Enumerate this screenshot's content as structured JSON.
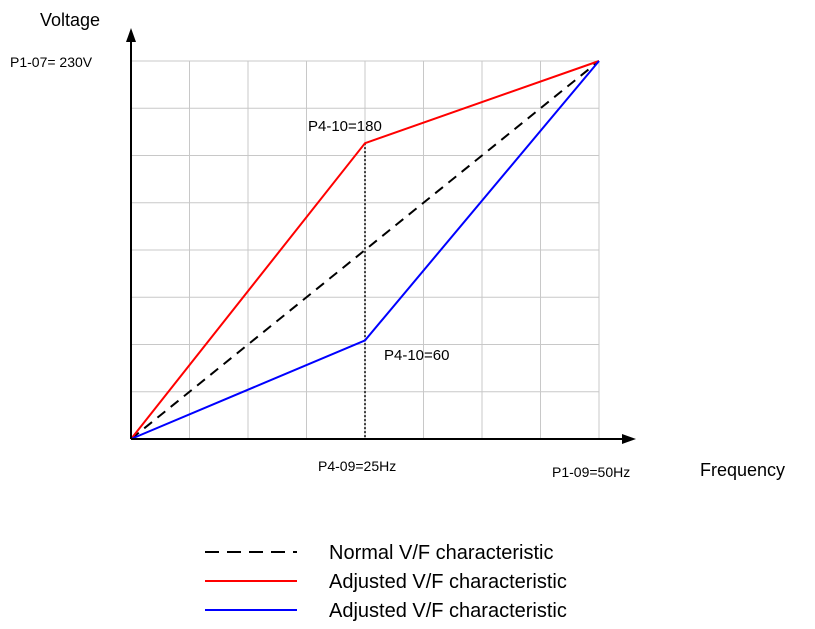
{
  "chart_data": {
    "type": "line",
    "xlabel": "Frequency",
    "ylabel": "Voltage",
    "xlim": [
      0,
      50
    ],
    "ylim": [
      0,
      230
    ],
    "grid": true,
    "legend_position": "bottom-center",
    "y_max_label": "P1-07= 230V",
    "x_mid_label": "P4-09=25Hz",
    "x_max_label": "P1-09=50Hz",
    "annotations": {
      "upper_point": "P4-10=180",
      "lower_point": "P4-10=60"
    },
    "series": [
      {
        "name": "Normal V/F characteristic",
        "color": "#000000",
        "dash": "dashed",
        "x": [
          0,
          50
        ],
        "y": [
          0,
          230
        ]
      },
      {
        "name": "Adjusted V/F characteristic",
        "color": "#ff0000",
        "dash": "solid",
        "x": [
          0,
          25,
          50
        ],
        "y": [
          0,
          180,
          230
        ]
      },
      {
        "name": "Adjusted V/F characteristic",
        "color": "#0000ff",
        "dash": "solid",
        "x": [
          0,
          25,
          50
        ],
        "y": [
          0,
          60,
          230
        ]
      }
    ]
  }
}
